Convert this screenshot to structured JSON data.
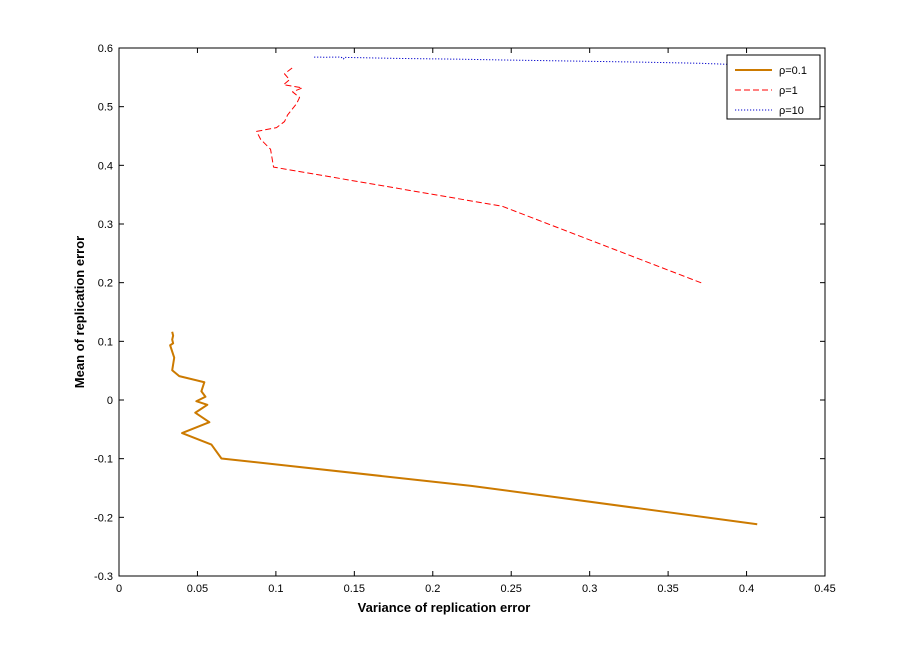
{
  "chart_data": {
    "type": "line",
    "title": "",
    "xlabel": "Variance of replication error",
    "ylabel": "Mean of replication error",
    "xlim": [
      0,
      0.45
    ],
    "ylim": [
      -0.3,
      0.6
    ],
    "xticks": [
      0,
      0.05,
      0.1,
      0.15,
      0.2,
      0.25,
      0.3,
      0.35,
      0.4,
      0.45
    ],
    "xtick_labels": [
      "0",
      "0.05",
      "0.1",
      "0.15",
      "0.2",
      "0.25",
      "0.3",
      "0.35",
      "0.4",
      "0.45"
    ],
    "yticks": [
      -0.3,
      -0.2,
      -0.1,
      0,
      0.1,
      0.2,
      0.3,
      0.4,
      0.5,
      0.6
    ],
    "ytick_labels": [
      "-0.3",
      "-0.2",
      "-0.1",
      "0",
      "0.1",
      "0.2",
      "0.3",
      "0.4",
      "0.5",
      "0.6"
    ],
    "grid": false,
    "legend_position": "top-right",
    "series": [
      {
        "name": "ρ=0.1",
        "color": "#cc7a00",
        "style": "solid",
        "x": [
          0.4068,
          0.2245,
          0.0653,
          0.0589,
          0.0402,
          0.0576,
          0.0486,
          0.0563,
          0.0493,
          0.0551,
          0.0525,
          0.0544,
          0.0384,
          0.0339,
          0.0352,
          0.0326,
          0.0345,
          0.0339,
          0.0345,
          0.0339
        ],
        "y": [
          -0.2117,
          -0.1463,
          -0.0997,
          -0.0759,
          -0.0564,
          -0.0379,
          -0.0217,
          -0.0082,
          -0.0021,
          0.0055,
          0.0149,
          0.0303,
          0.0407,
          0.0507,
          0.0722,
          0.0933,
          0.0966,
          0.1029,
          0.1097,
          0.1163
        ]
      },
      {
        "name": "ρ=1",
        "color": "#ff0000",
        "style": "dashed",
        "x": [
          0.3711,
          0.2442,
          0.0985,
          0.0966,
          0.0903,
          0.0877,
          0.1004,
          0.1055,
          0.1074,
          0.1099,
          0.1132,
          0.1151,
          0.1106,
          0.1169,
          0.1049,
          0.1087,
          0.1055,
          0.1106
        ],
        "y": [
          0.1997,
          0.3303,
          0.397,
          0.4274,
          0.4442,
          0.4578,
          0.4643,
          0.4746,
          0.4856,
          0.494,
          0.5052,
          0.5157,
          0.5253,
          0.532,
          0.5375,
          0.546,
          0.5559,
          0.5665
        ]
      },
      {
        "name": "ρ=10",
        "color": "#0000cc",
        "style": "dotted",
        "x": [
          0.4068,
          0.3711,
          0.3353,
          0.2927,
          0.2442,
          0.2155,
          0.181,
          0.1627,
          0.1517,
          0.1466,
          0.1453,
          0.144,
          0.1441,
          0.1432,
          0.1431,
          0.1423,
          0.1412,
          0.1327,
          0.1234
        ],
        "y": [
          0.5702,
          0.5739,
          0.5758,
          0.5776,
          0.5796,
          0.581,
          0.5821,
          0.583,
          0.5836,
          0.5838,
          0.5839,
          0.5841,
          0.5845,
          0.582,
          0.5813,
          0.5833,
          0.5846,
          0.5843,
          0.5844
        ]
      }
    ]
  }
}
